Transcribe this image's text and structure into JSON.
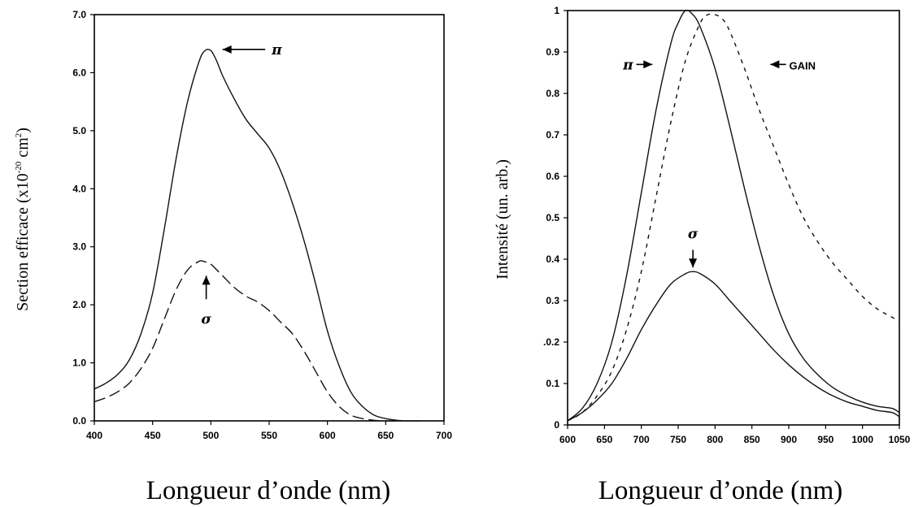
{
  "chart_data": [
    {
      "type": "line",
      "title": "",
      "xlabel": "Longueur d’onde (nm)",
      "ylabel_main": "Section   efficace   (x10",
      "ylabel_exp": "-20",
      "ylabel_unit": " cm",
      "ylabel_unit_exp": "2",
      "ylabel_close": ")",
      "xlim": [
        400,
        700
      ],
      "ylim": [
        0,
        7
      ],
      "xticks": [
        "400",
        "450",
        "500",
        "550",
        "600",
        "650",
        "700"
      ],
      "yticks": [
        "0.0",
        "1.0",
        "2.0",
        "3.0",
        "4.0",
        "5.0",
        "6.0",
        "7.0"
      ],
      "xtick_values": [
        400,
        450,
        500,
        550,
        600,
        650,
        700
      ],
      "ytick_values": [
        0,
        1,
        2,
        3,
        4,
        5,
        6,
        7
      ],
      "series": [
        {
          "name": "π",
          "style": "solid",
          "x": [
            400,
            410,
            420,
            430,
            440,
            450,
            460,
            470,
            480,
            490,
            495,
            500,
            505,
            510,
            520,
            530,
            540,
            550,
            560,
            570,
            580,
            590,
            600,
            610,
            620,
            630,
            640,
            650,
            660,
            670,
            680
          ],
          "y": [
            0.55,
            0.65,
            0.8,
            1.05,
            1.5,
            2.2,
            3.3,
            4.5,
            5.5,
            6.2,
            6.38,
            6.38,
            6.2,
            5.95,
            5.55,
            5.2,
            4.95,
            4.7,
            4.3,
            3.75,
            3.1,
            2.35,
            1.55,
            0.95,
            0.5,
            0.25,
            0.1,
            0.04,
            0.01,
            0.0,
            0.0
          ]
        },
        {
          "name": "σ",
          "style": "dashed",
          "x": [
            400,
            410,
            420,
            430,
            440,
            450,
            460,
            470,
            480,
            490,
            495,
            500,
            510,
            520,
            530,
            540,
            550,
            560,
            570,
            580,
            590,
            600,
            610,
            620,
            630,
            640,
            650,
            660
          ],
          "y": [
            0.33,
            0.4,
            0.5,
            0.65,
            0.9,
            1.25,
            1.75,
            2.25,
            2.6,
            2.75,
            2.74,
            2.7,
            2.5,
            2.3,
            2.15,
            2.05,
            1.9,
            1.7,
            1.5,
            1.2,
            0.85,
            0.5,
            0.25,
            0.1,
            0.04,
            0.01,
            0.0,
            0.0
          ]
        }
      ],
      "annotations": [
        {
          "label": "π",
          "x": 555,
          "y": 6.4,
          "arrow_to": [
            510,
            6.4
          ]
        },
        {
          "label": "σ",
          "x": 496,
          "y": 1.9,
          "arrow_to": [
            496,
            2.5
          ]
        }
      ]
    },
    {
      "type": "line",
      "title": "",
      "xlabel": "Longueur d’onde (nm)",
      "ylabel": "Intensité    (un. arb.)",
      "xlim": [
        600,
        1050
      ],
      "ylim": [
        0,
        1
      ],
      "xticks": [
        "600",
        "650",
        "700",
        "750",
        "800",
        "850",
        "900",
        "950",
        "1000",
        "1050"
      ],
      "yticks": [
        "0",
        "0.1",
        ".0.2",
        "0.3",
        "0.4",
        "0.5",
        "0.6",
        "0.7",
        "0.8",
        "0.9",
        "1"
      ],
      "xtick_values": [
        600,
        650,
        700,
        750,
        800,
        850,
        900,
        950,
        1000,
        1050
      ],
      "ytick_values": [
        0,
        0.1,
        0.2,
        0.3,
        0.4,
        0.5,
        0.6,
        0.7,
        0.8,
        0.9,
        1
      ],
      "series": [
        {
          "name": "π",
          "style": "solid",
          "x": [
            600,
            620,
            640,
            660,
            680,
            700,
            720,
            740,
            750,
            760,
            770,
            780,
            800,
            820,
            840,
            860,
            880,
            900,
            920,
            940,
            960,
            980,
            1000,
            1020,
            1040,
            1050
          ],
          "y": [
            0.01,
            0.04,
            0.1,
            0.2,
            0.36,
            0.56,
            0.76,
            0.92,
            0.97,
            1.0,
            0.99,
            0.96,
            0.86,
            0.72,
            0.57,
            0.43,
            0.31,
            0.22,
            0.16,
            0.12,
            0.09,
            0.07,
            0.055,
            0.045,
            0.04,
            0.03
          ]
        },
        {
          "name": "GAIN",
          "style": "dashed",
          "x": [
            600,
            620,
            640,
            660,
            680,
            700,
            720,
            740,
            760,
            780,
            790,
            800,
            810,
            820,
            840,
            860,
            880,
            900,
            920,
            940,
            960,
            980,
            1000,
            1020,
            1040,
            1050
          ],
          "y": [
            0.01,
            0.03,
            0.07,
            0.13,
            0.23,
            0.37,
            0.55,
            0.73,
            0.88,
            0.97,
            0.99,
            0.99,
            0.98,
            0.95,
            0.86,
            0.76,
            0.67,
            0.58,
            0.5,
            0.44,
            0.39,
            0.35,
            0.31,
            0.28,
            0.26,
            0.25
          ]
        },
        {
          "name": "σ",
          "style": "solid",
          "x": [
            600,
            620,
            640,
            660,
            680,
            700,
            720,
            740,
            760,
            770,
            780,
            800,
            820,
            840,
            860,
            880,
            900,
            920,
            940,
            960,
            980,
            1000,
            1020,
            1040,
            1050
          ],
          "y": [
            0.01,
            0.03,
            0.06,
            0.1,
            0.16,
            0.23,
            0.29,
            0.34,
            0.365,
            0.37,
            0.365,
            0.34,
            0.3,
            0.26,
            0.22,
            0.18,
            0.145,
            0.115,
            0.09,
            0.07,
            0.055,
            0.045,
            0.035,
            0.03,
            0.02
          ]
        }
      ],
      "annotations": [
        {
          "label": "π",
          "x": 680,
          "y": 0.87,
          "arrow_to": [
            715,
            0.87
          ]
        },
        {
          "label": "GAIN",
          "x": 905,
          "y": 0.87,
          "arrow_to": [
            875,
            0.87
          ]
        },
        {
          "label": "σ",
          "x": 770,
          "y": 0.45,
          "arrow_to": [
            770,
            0.38
          ]
        }
      ]
    }
  ]
}
